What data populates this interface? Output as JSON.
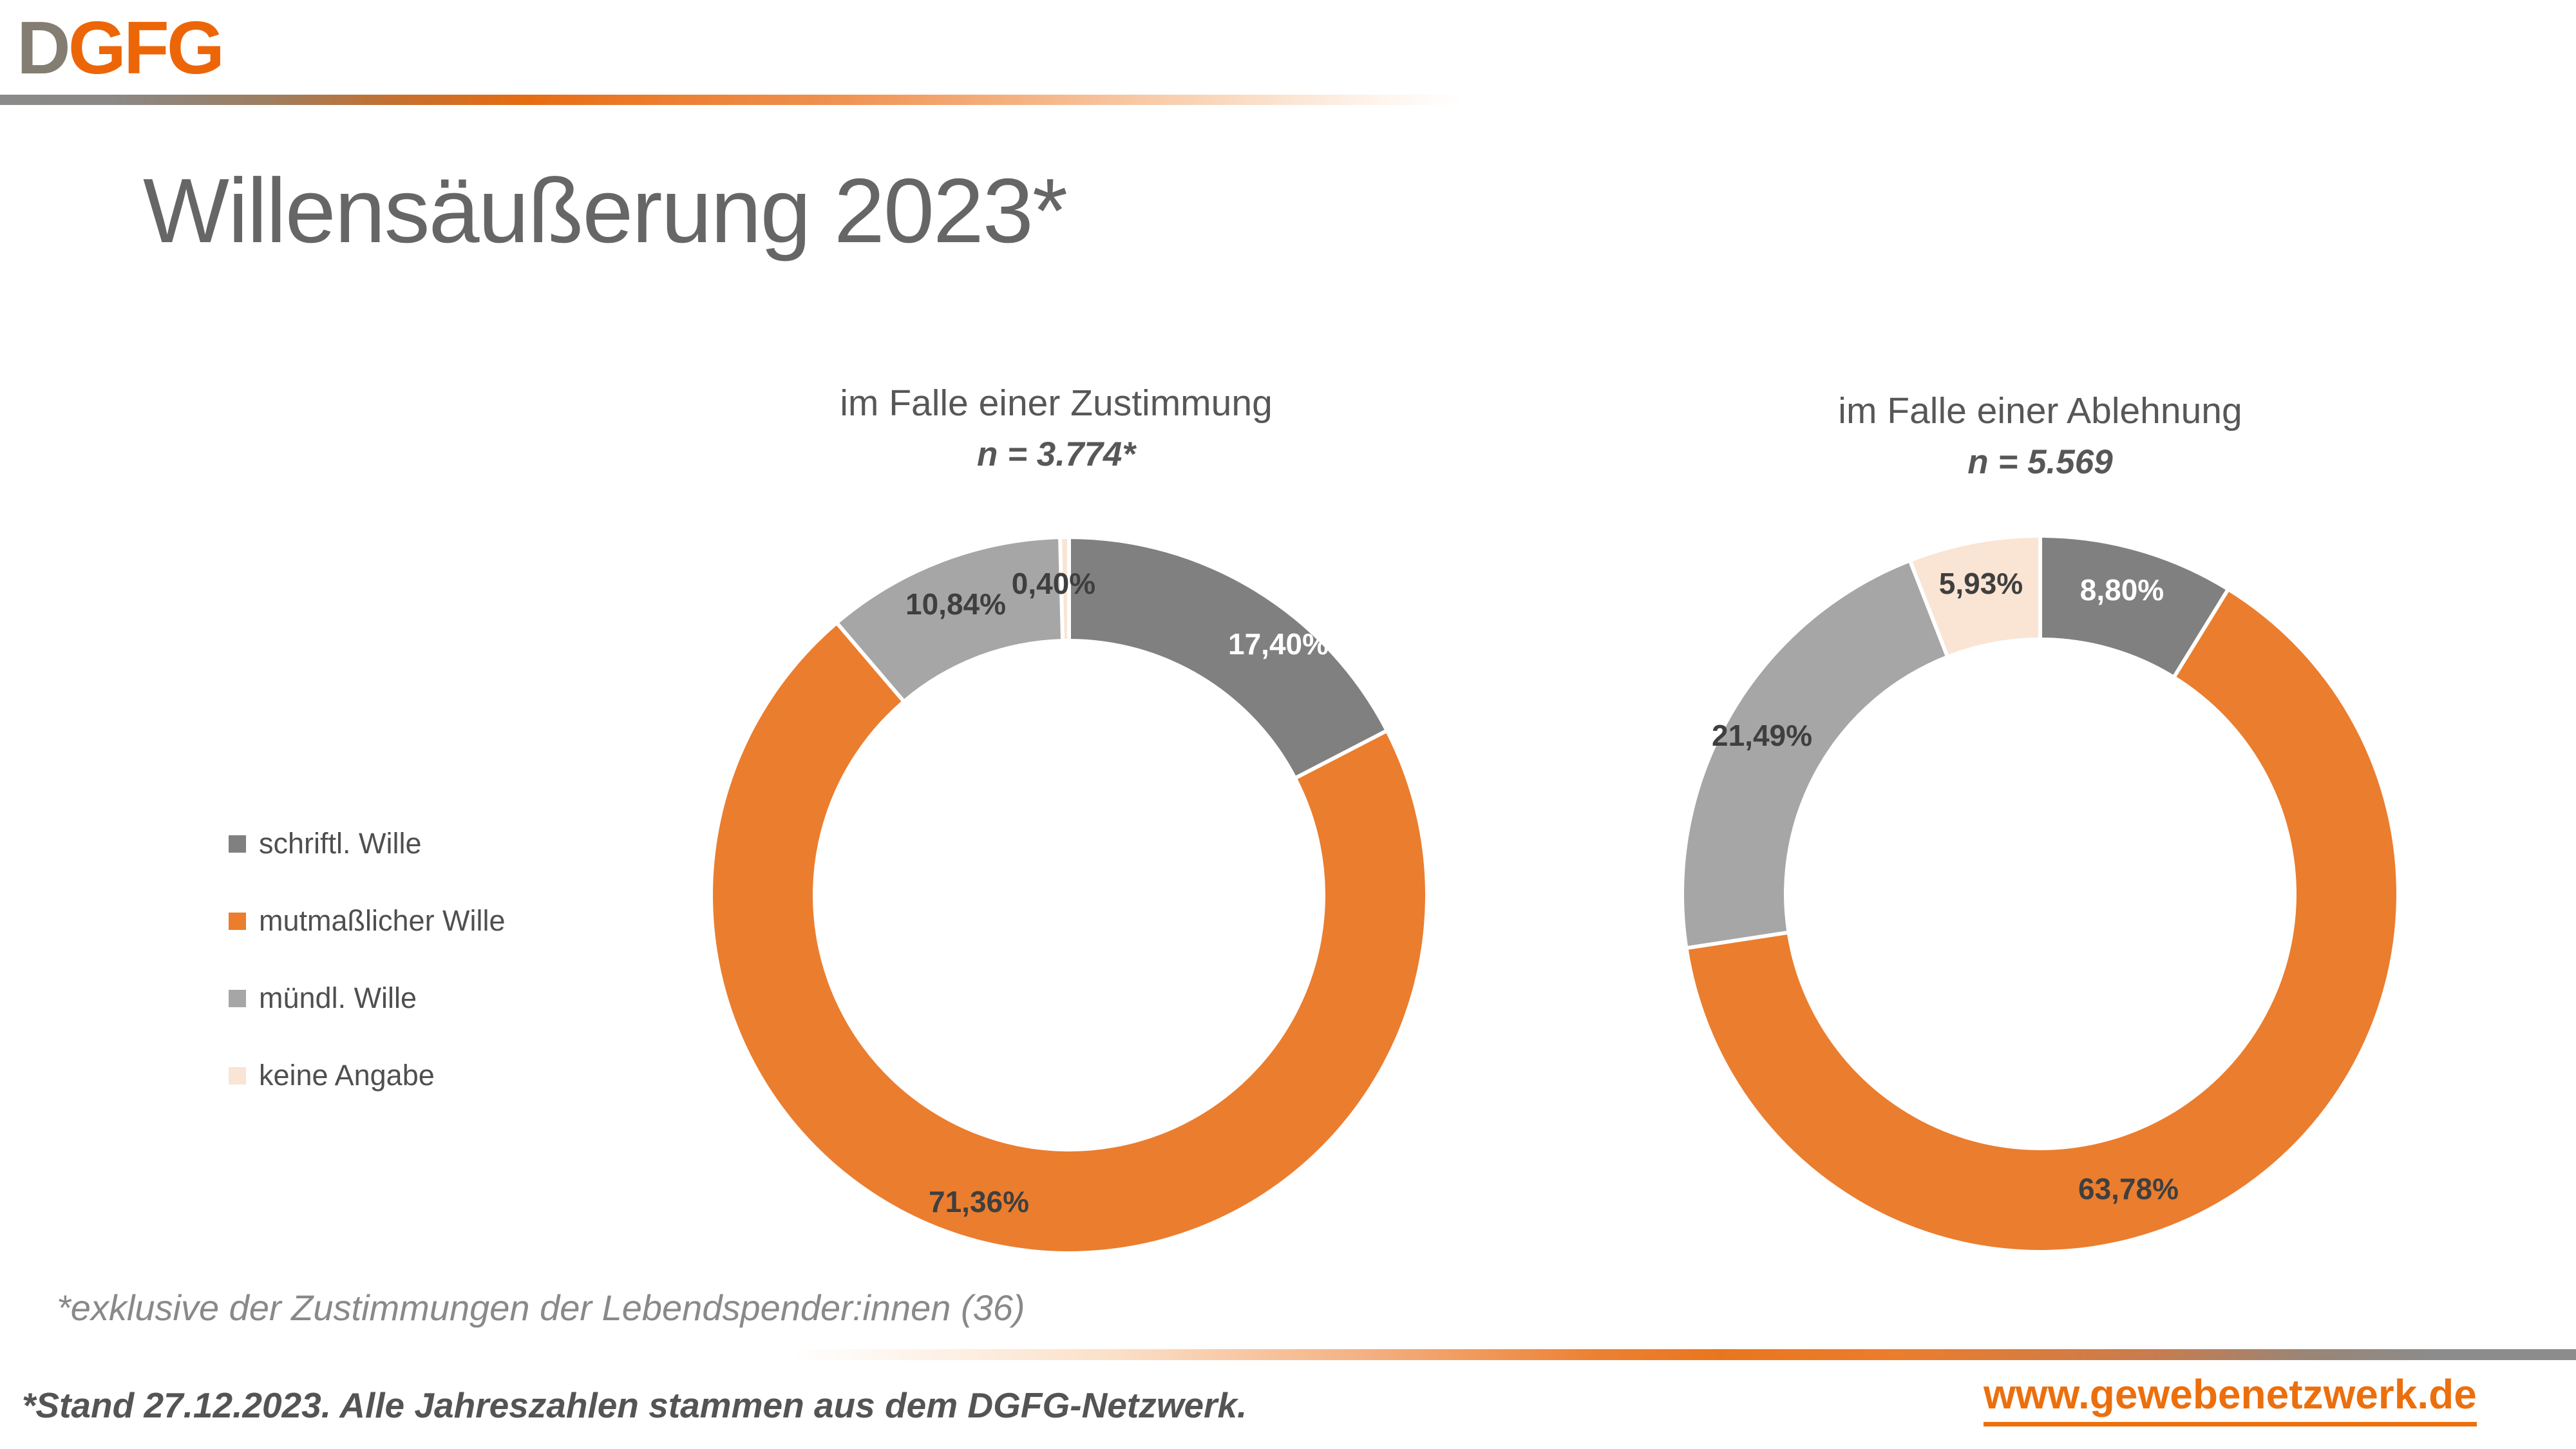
{
  "logo": {
    "d": "D",
    "gfg": "GFG"
  },
  "title": "Willensäußerung 2023*",
  "chart_data": [
    {
      "type": "pie",
      "donut": true,
      "title": "im Falle einer Zustimmung",
      "subtitle": "n = 3.774*",
      "labels": [
        "schriftl. Wille",
        "mutmaßlicher Wille",
        "mündl. Wille",
        "keine Angabe"
      ],
      "values": [
        17.4,
        71.36,
        10.84,
        0.4
      ],
      "display_values": [
        "17,40%",
        "71,36%",
        "10,84%",
        "0,40%"
      ],
      "colors": [
        "#808080",
        "#EB7D2E",
        "#A6A6A6",
        "#FAE4D4"
      ],
      "start_angle_deg": 0,
      "direction": "clockwise",
      "center": [
        1660,
        1390
      ],
      "outer_radius": 553,
      "inner_radius": 398,
      "label_positions": [
        [
          1985,
          1000
        ],
        [
          1520,
          1866
        ],
        [
          1484,
          938
        ],
        [
          1636,
          906
        ]
      ],
      "label_colors": [
        "#FFFFFF",
        "#3F3F3F",
        "#3F3F3F",
        "#3F3F3F"
      ]
    },
    {
      "type": "pie",
      "donut": true,
      "title": "im Falle einer Ablehnung",
      "subtitle": "n = 5.569",
      "labels": [
        "schriftl. Wille",
        "mutmaßlicher Wille",
        "mündl. Wille",
        "keine Angabe"
      ],
      "values": [
        8.8,
        63.78,
        21.49,
        5.93
      ],
      "display_values": [
        "8,80%",
        "63,78%",
        "21,49%",
        "5,93%"
      ],
      "colors": [
        "#808080",
        "#EB7D2E",
        "#A6A6A6",
        "#FAE4D4"
      ],
      "start_angle_deg": 0,
      "direction": "clockwise",
      "center": [
        3168,
        1388
      ],
      "outer_radius": 553,
      "inner_radius": 398,
      "label_positions": [
        [
          3295,
          916
        ],
        [
          3305,
          1846
        ],
        [
          2736,
          1142
        ],
        [
          3076,
          906
        ]
      ],
      "label_colors": [
        "#FFFFFF",
        "#3F3F3F",
        "#3F3F3F",
        "#3F3F3F"
      ]
    }
  ],
  "legend": {
    "items": [
      {
        "label": "schriftl. Wille",
        "color": "#808080"
      },
      {
        "label": "mutmaßlicher Wille",
        "color": "#EB7D2E"
      },
      {
        "label": "mündl. Wille",
        "color": "#A6A6A6"
      },
      {
        "label": "keine Angabe",
        "color": "#FAE4D4"
      }
    ]
  },
  "footnote": "*exklusive der Zustimmungen der Lebendspender:innen (36)",
  "stand_note": "*Stand 27.12.2023. Alle Jahreszahlen stammen aus dem DGFG-Netzwerk.",
  "website": "www.gewebenetzwerk.de",
  "colors": {
    "accent_orange": "#EB7D2E",
    "dark_gray": "#808080",
    "light_gray": "#A6A6A6",
    "peach": "#FAE4D4",
    "title_gray": "#666666",
    "logo_orange": "#EC6608",
    "logo_gray": "#847E72",
    "link_orange": "#EC6F0D"
  }
}
